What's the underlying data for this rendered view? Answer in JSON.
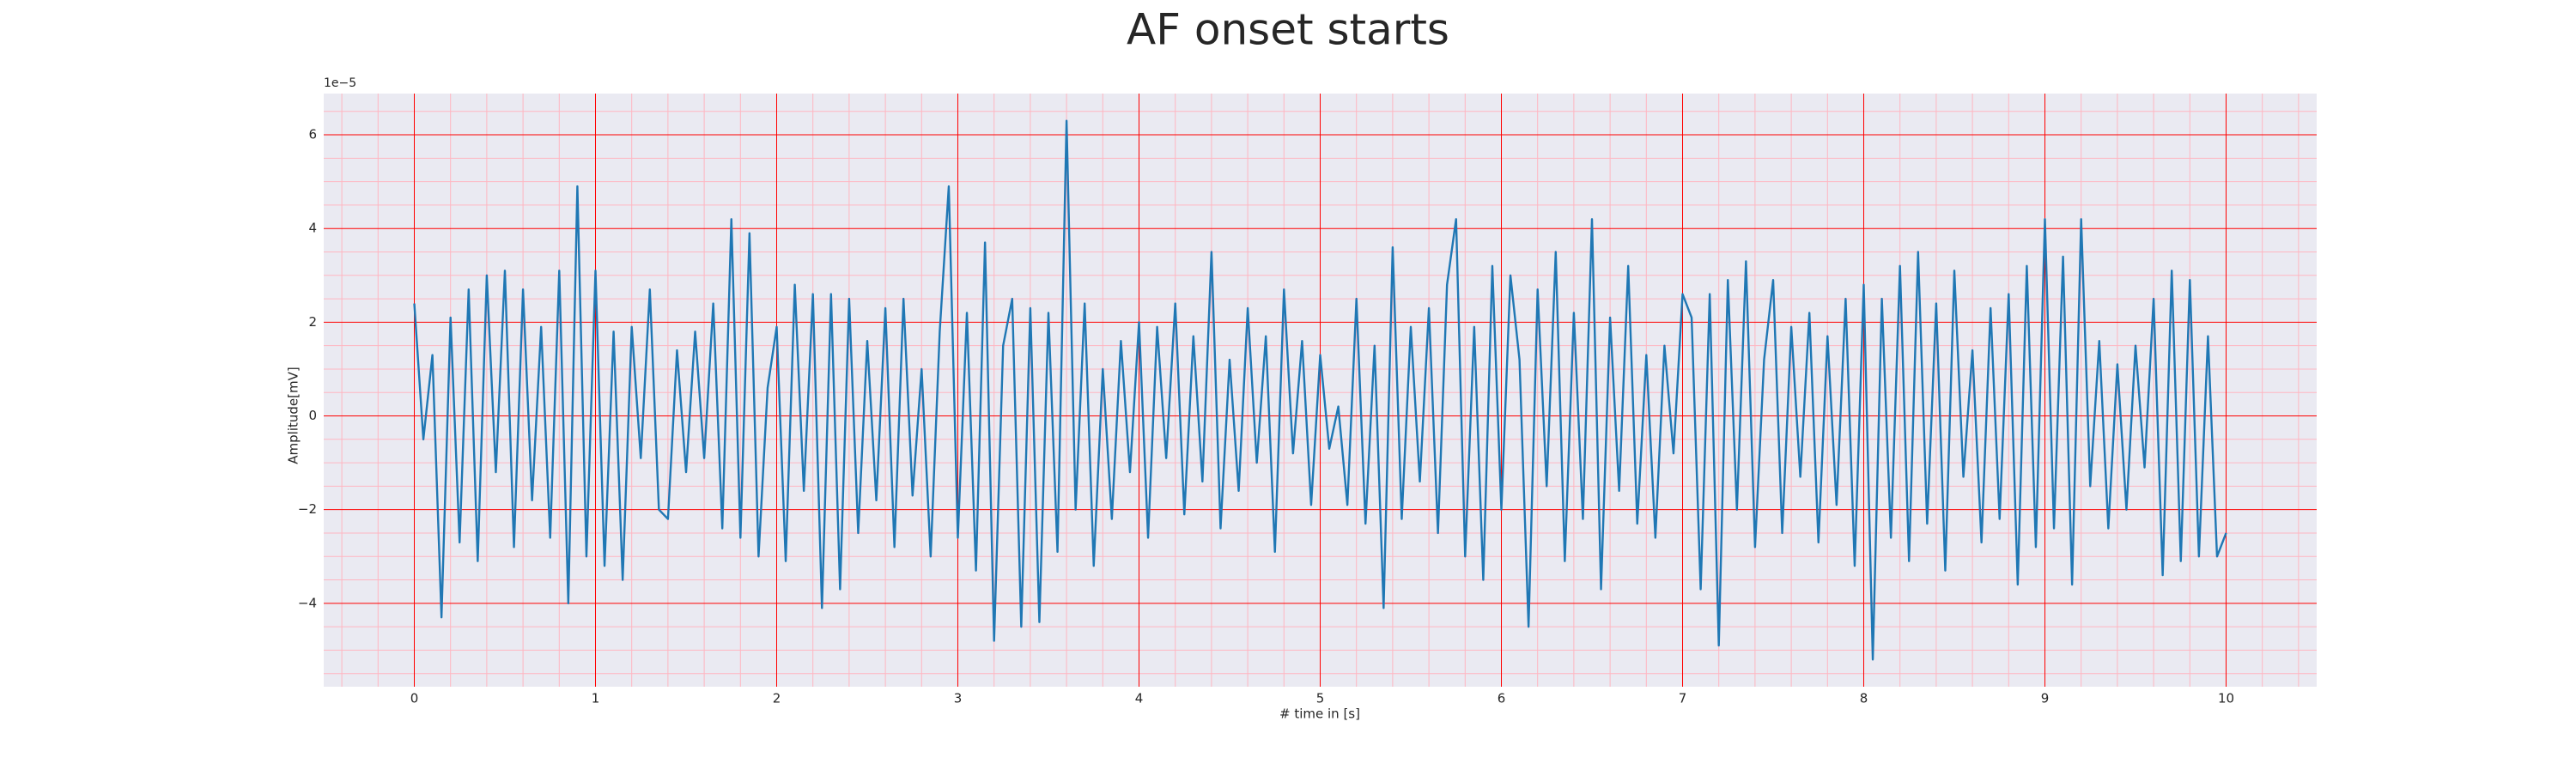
{
  "chart_data": {
    "type": "line",
    "title": "AF onset starts",
    "xlabel": "# time in [s]",
    "ylabel": "Amplitude[mV]",
    "offset_label": "1e−5",
    "x": [
      0,
      0.05,
      0.1,
      0.15,
      0.2,
      0.25,
      0.3,
      0.35,
      0.4,
      0.45,
      0.5,
      0.55,
      0.6,
      0.65,
      0.7,
      0.75,
      0.8,
      0.85,
      0.9,
      0.95,
      1,
      1.05,
      1.1,
      1.15,
      1.2,
      1.25,
      1.3,
      1.35,
      1.4,
      1.45,
      1.5,
      1.55,
      1.6,
      1.65,
      1.7,
      1.75,
      1.8,
      1.85,
      1.9,
      1.95,
      2,
      2.05,
      2.1,
      2.15,
      2.2,
      2.25,
      2.3,
      2.35,
      2.4,
      2.45,
      2.5,
      2.55,
      2.6,
      2.65,
      2.7,
      2.75,
      2.8,
      2.85,
      2.9,
      2.95,
      3,
      3.05,
      3.1,
      3.15,
      3.2,
      3.25,
      3.3,
      3.35,
      3.4,
      3.45,
      3.5,
      3.55,
      3.6,
      3.65,
      3.7,
      3.75,
      3.8,
      3.85,
      3.9,
      3.95,
      4,
      4.05,
      4.1,
      4.15,
      4.2,
      4.25,
      4.3,
      4.35,
      4.4,
      4.45,
      4.5,
      4.55,
      4.6,
      4.65,
      4.7,
      4.75,
      4.8,
      4.85,
      4.9,
      4.95,
      5,
      5.05,
      5.1,
      5.15,
      5.2,
      5.25,
      5.3,
      5.35,
      5.4,
      5.45,
      5.5,
      5.55,
      5.6,
      5.65,
      5.7,
      5.75,
      5.8,
      5.85,
      5.9,
      5.95,
      6,
      6.05,
      6.1,
      6.15,
      6.2,
      6.25,
      6.3,
      6.35,
      6.4,
      6.45,
      6.5,
      6.55,
      6.6,
      6.65,
      6.7,
      6.75,
      6.8,
      6.85,
      6.9,
      6.95,
      7,
      7.05,
      7.1,
      7.15,
      7.2,
      7.25,
      7.3,
      7.35,
      7.4,
      7.45,
      7.5,
      7.55,
      7.6,
      7.65,
      7.7,
      7.75,
      7.8,
      7.85,
      7.9,
      7.95,
      8,
      8.05,
      8.1,
      8.15,
      8.2,
      8.25,
      8.3,
      8.35,
      8.4,
      8.45,
      8.5,
      8.55,
      8.6,
      8.65,
      8.7,
      8.75,
      8.8,
      8.85,
      8.9,
      8.95,
      9,
      9.05,
      9.1,
      9.15,
      9.2,
      9.25,
      9.3,
      9.35,
      9.4,
      9.45,
      9.5,
      9.55,
      9.6,
      9.65,
      9.7,
      9.75,
      9.8,
      9.85,
      9.9,
      9.95,
      10
    ],
    "series": [
      {
        "color": "#1f77b4",
        "values": [
          2.4,
          -0.5,
          1.3,
          -4.3,
          2.1,
          -2.7,
          2.7,
          -3.1,
          3.0,
          -1.2,
          3.1,
          -2.8,
          2.7,
          -1.8,
          1.9,
          -2.6,
          3.1,
          -4.0,
          4.9,
          -3.0,
          3.1,
          -3.2,
          1.8,
          -3.5,
          1.9,
          -0.9,
          2.7,
          -2.0,
          -2.2,
          1.4,
          -1.2,
          1.8,
          -0.9,
          2.4,
          -2.4,
          4.2,
          -2.6,
          3.9,
          -3.0,
          0.6,
          1.9,
          -3.1,
          2.8,
          -1.6,
          2.6,
          -4.1,
          2.6,
          -3.7,
          2.5,
          -2.5,
          1.6,
          -1.8,
          2.3,
          -2.8,
          2.5,
          -1.7,
          1.0,
          -3.0,
          1.8,
          4.9,
          -2.6,
          2.2,
          -3.3,
          3.7,
          -4.8,
          1.5,
          2.5,
          -4.5,
          2.3,
          -4.4,
          2.2,
          -2.9,
          6.3,
          -2.0,
          2.4,
          -3.2,
          1.0,
          -2.2,
          1.6,
          -1.2,
          2.0,
          -2.6,
          1.9,
          -0.9,
          2.4,
          -2.1,
          1.7,
          -1.4,
          3.5,
          -2.4,
          1.2,
          -1.6,
          2.3,
          -1.0,
          1.7,
          -2.9,
          2.7,
          -0.8,
          1.6,
          -1.9,
          1.3,
          -0.7,
          0.2,
          -1.9,
          2.5,
          -2.3,
          1.5,
          -4.1,
          3.6,
          -2.2,
          1.9,
          -1.4,
          2.3,
          -2.5,
          2.8,
          4.2,
          -3.0,
          1.9,
          -3.5,
          3.2,
          -2.0,
          3.0,
          1.2,
          -4.5,
          2.7,
          -1.5,
          3.5,
          -3.1,
          2.2,
          -2.2,
          4.2,
          -3.7,
          2.1,
          -1.6,
          3.2,
          -2.3,
          1.3,
          -2.6,
          1.5,
          -0.8,
          2.6,
          2.1,
          -3.7,
          2.6,
          -4.9,
          2.9,
          -2.0,
          3.3,
          -2.8,
          1.2,
          2.9,
          -2.5,
          1.9,
          -1.3,
          2.2,
          -2.7,
          1.7,
          -1.9,
          2.5,
          -3.2,
          2.8,
          -5.2,
          2.5,
          -2.6,
          3.2,
          -3.1,
          3.5,
          -2.3,
          2.4,
          -3.3,
          3.1,
          -1.3,
          1.4,
          -2.7,
          2.3,
          -2.2,
          2.6,
          -3.6,
          3.2,
          -2.8,
          4.2,
          -2.4,
          3.4,
          -3.6,
          4.2,
          -1.5,
          1.6,
          -2.4,
          1.1,
          -2.0,
          1.5,
          -1.1,
          2.5,
          -3.4,
          3.1,
          -3.1,
          2.9,
          -3.0,
          1.7,
          -3.0,
          -2.5
        ]
      }
    ],
    "xlim": [
      -0.5,
      10.5
    ],
    "ylim": [
      -5.78,
      6.88
    ],
    "xticks": [
      0,
      1,
      2,
      3,
      4,
      5,
      6,
      7,
      8,
      9,
      10
    ],
    "yticks": [
      {
        "value": -4,
        "label": "−4"
      },
      {
        "value": -2,
        "label": "−2"
      },
      0,
      2,
      4,
      6
    ],
    "xticks_minor": [
      -0.4,
      -0.2,
      0.2,
      0.4,
      0.6,
      0.8,
      1.2,
      1.4,
      1.6,
      1.8,
      2.2,
      2.4,
      2.6,
      2.8,
      3.2,
      3.4,
      3.6,
      3.8,
      4.2,
      4.4,
      4.6,
      4.8,
      5.2,
      5.4,
      5.6,
      5.8,
      6.2,
      6.4,
      6.6,
      6.8,
      7.2,
      7.4,
      7.6,
      7.8,
      8.2,
      8.4,
      8.6,
      8.8,
      9.2,
      9.4,
      9.6,
      9.8,
      10.2,
      10.4
    ],
    "yticks_minor": [
      -5.5,
      -5,
      -4.5,
      -3.5,
      -3,
      -2.5,
      -1.5,
      -1,
      -0.5,
      0.5,
      1,
      1.5,
      2.5,
      3,
      3.5,
      4.5,
      5,
      5.5,
      6.5
    ],
    "grid": true,
    "grid_color": "#ff0000",
    "minor_grid_color": "#ffb6c1",
    "background": "#eaeaf2"
  }
}
